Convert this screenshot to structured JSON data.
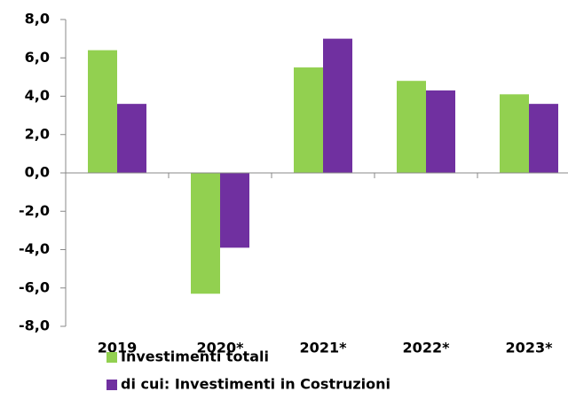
{
  "chart_data": {
    "type": "bar",
    "categories": [
      "2019",
      "2020*",
      "2021*",
      "2022*",
      "2023*"
    ],
    "series": [
      {
        "name": "Investimenti totali",
        "color": "#92d050",
        "values": [
          6.4,
          -6.3,
          5.5,
          4.8,
          4.1
        ]
      },
      {
        "name": "di cui: Investimenti in Costruzioni",
        "color": "#7030a0",
        "values": [
          3.6,
          -3.9,
          7.0,
          4.3,
          3.6
        ]
      }
    ],
    "ylim": [
      -8,
      8
    ],
    "yticks": [
      {
        "value": -8,
        "label": "-8,0"
      },
      {
        "value": -6,
        "label": "-6,0"
      },
      {
        "value": -4,
        "label": "-4,0"
      },
      {
        "value": -2,
        "label": "-2,0"
      },
      {
        "value": 0,
        "label": "0,0"
      },
      {
        "value": 2,
        "label": "2,0"
      },
      {
        "value": 4,
        "label": "4,0"
      },
      {
        "value": 6,
        "label": "6,0"
      },
      {
        "value": 8,
        "label": "8,0"
      }
    ],
    "grid": false,
    "legend": "bottom"
  }
}
